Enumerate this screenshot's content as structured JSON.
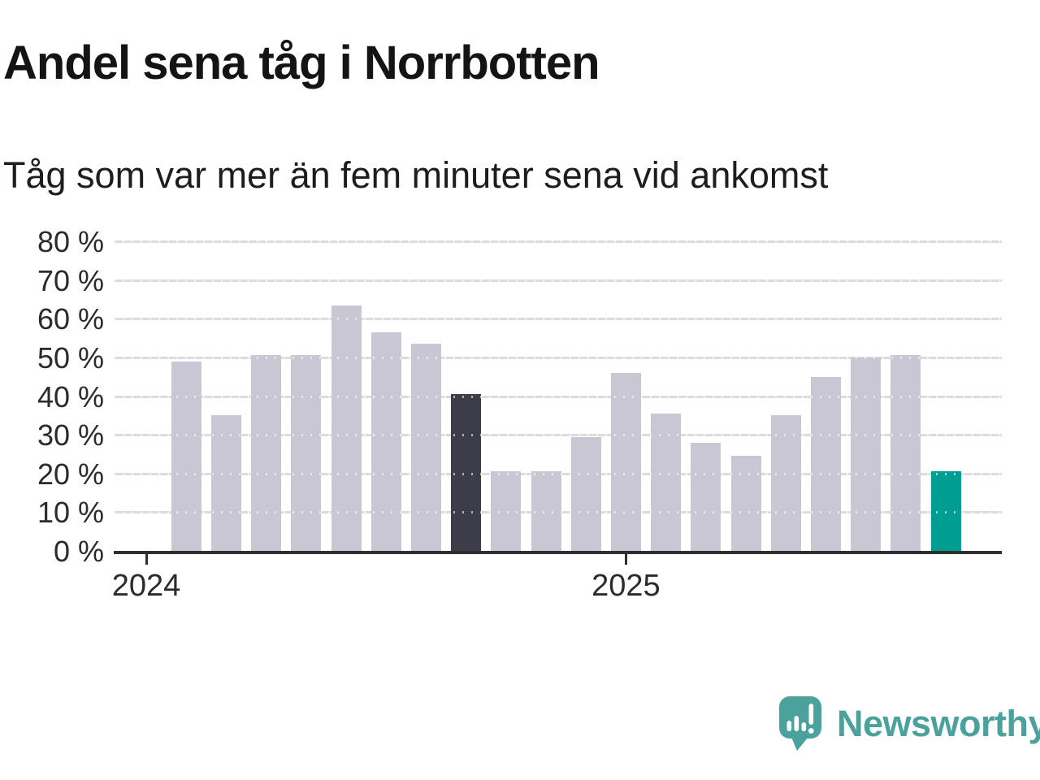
{
  "title": "Andel sena tåg i Norrbotten",
  "subtitle": "Tåg som var mer än fem minuter sena vid ankomst",
  "logo": {
    "text": "Newsworthy",
    "icon": "speech-bubble-bar-chart-exclamation-icon"
  },
  "colors": {
    "bar_default": "#c8c7d3",
    "bar_highlight_dark": "#3d3c49",
    "bar_highlight_teal": "#009e92",
    "gridline": "#dcdcdc",
    "axis": "#2e2e2e",
    "text": "#2b2b2b",
    "logo_teal": "#4BA19C",
    "background": "#ffffff"
  },
  "chart_data": {
    "type": "bar",
    "title": "Andel sena tåg i Norrbotten",
    "subtitle": "Tåg som var mer än fem minuter sena vid ankomst",
    "unit": "%",
    "x": [
      "2024-01",
      "2024-02",
      "2024-03",
      "2024-04",
      "2024-05",
      "2024-06",
      "2024-07",
      "2024-08",
      "2024-09",
      "2024-10",
      "2024-11",
      "2024-12",
      "2025-01",
      "2025-02",
      "2025-03",
      "2025-04",
      "2025-05",
      "2025-06",
      "2025-07",
      "2025-08",
      "2025-09"
    ],
    "values": [
      null,
      49,
      35,
      50.5,
      50.5,
      63.5,
      56.5,
      53.5,
      40.5,
      20.5,
      20.5,
      29.5,
      46,
      35.5,
      28,
      24.5,
      35,
      45,
      50,
      50.5,
      20.5
    ],
    "highlight_dark_index": 8,
    "highlight_teal_index": 20,
    "ylim": [
      0,
      80
    ],
    "yticks": [
      0,
      10,
      20,
      30,
      40,
      50,
      60,
      70,
      80
    ],
    "ytick_label_format": "{v} %",
    "xticks": [
      {
        "index": 0,
        "label": "2024"
      },
      {
        "index": 12,
        "label": "2025"
      }
    ],
    "grid": true,
    "legend": false
  }
}
